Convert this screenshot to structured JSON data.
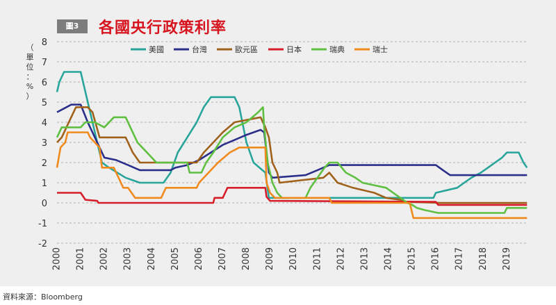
{
  "figure": {
    "badge": "圖3",
    "title": "各國央行政策利率",
    "source": "資料來源：Bloomberg"
  },
  "colors": {
    "title": "#d7141e",
    "panel": "#efefef",
    "badge": "#7d7d7d",
    "grid": "#9a9a9a"
  },
  "chart_data": {
    "type": "line",
    "title": "各國央行政策利率",
    "ylabel": "（單位：%）",
    "xlabel": "",
    "xlim": [
      2000,
      2019.9
    ],
    "ylim": [
      -2,
      8
    ],
    "yticks": [
      -2,
      -1,
      0,
      1,
      2,
      3,
      4,
      5,
      6,
      7,
      8
    ],
    "xticks": [
      "2000",
      "2001",
      "2002",
      "2003",
      "2004",
      "2005",
      "2006",
      "2007",
      "2008",
      "2009",
      "2010",
      "2011",
      "2012",
      "2013",
      "2014",
      "2015",
      "2016",
      "2017",
      "2018",
      "2019"
    ],
    "grid": "horizontal dashed",
    "legend": "top",
    "series": [
      {
        "name": "美國",
        "color": "#27a59b",
        "points": [
          [
            2000,
            5.5
          ],
          [
            2000.1,
            6.0
          ],
          [
            2000.3,
            6.5
          ],
          [
            2000.5,
            6.5
          ],
          [
            2001.0,
            6.5
          ],
          [
            2001.2,
            5.5
          ],
          [
            2001.5,
            4.0
          ],
          [
            2001.9,
            2.0
          ],
          [
            2002.2,
            1.75
          ],
          [
            2002.9,
            1.25
          ],
          [
            2003.5,
            1.0
          ],
          [
            2004.5,
            1.0
          ],
          [
            2004.8,
            1.5
          ],
          [
            2005.1,
            2.5
          ],
          [
            2005.5,
            3.25
          ],
          [
            2005.9,
            4.0
          ],
          [
            2006.2,
            4.75
          ],
          [
            2006.5,
            5.25
          ],
          [
            2007.5,
            5.25
          ],
          [
            2007.7,
            4.75
          ],
          [
            2008.0,
            3.0
          ],
          [
            2008.3,
            2.0
          ],
          [
            2008.8,
            1.5
          ],
          [
            2008.95,
            0.25
          ],
          [
            2015.9,
            0.25
          ],
          [
            2016.0,
            0.5
          ],
          [
            2016.9,
            0.75
          ],
          [
            2017.2,
            1.0
          ],
          [
            2017.5,
            1.25
          ],
          [
            2017.9,
            1.5
          ],
          [
            2018.2,
            1.75
          ],
          [
            2018.5,
            2.0
          ],
          [
            2018.8,
            2.25
          ],
          [
            2019.0,
            2.5
          ],
          [
            2019.5,
            2.5
          ],
          [
            2019.7,
            2.0
          ],
          [
            2019.85,
            1.75
          ]
        ]
      },
      {
        "name": "台灣",
        "color": "#2b2f8a",
        "points": [
          [
            2000,
            4.5
          ],
          [
            2000.4,
            4.75
          ],
          [
            2000.6,
            4.875
          ],
          [
            2001.0,
            4.875
          ],
          [
            2001.3,
            4.0
          ],
          [
            2001.6,
            3.25
          ],
          [
            2001.9,
            2.5
          ],
          [
            2002.0,
            2.25
          ],
          [
            2002.5,
            2.125
          ],
          [
            2003.0,
            1.875
          ],
          [
            2003.5,
            1.625
          ],
          [
            2004.0,
            1.625
          ],
          [
            2004.8,
            1.625
          ],
          [
            2005.0,
            1.75
          ],
          [
            2005.5,
            1.875
          ],
          [
            2006.0,
            2.125
          ],
          [
            2006.5,
            2.5
          ],
          [
            2007.0,
            2.875
          ],
          [
            2007.5,
            3.125
          ],
          [
            2008.0,
            3.375
          ],
          [
            2008.6,
            3.625
          ],
          [
            2008.75,
            3.5
          ],
          [
            2008.95,
            1.5
          ],
          [
            2009.1,
            1.25
          ],
          [
            2010.5,
            1.375
          ],
          [
            2011.0,
            1.625
          ],
          [
            2011.5,
            1.875
          ],
          [
            2016.0,
            1.875
          ],
          [
            2016.3,
            1.625
          ],
          [
            2016.6,
            1.375
          ],
          [
            2019.85,
            1.375
          ]
        ]
      },
      {
        "name": "歐元區",
        "color": "#a0621a",
        "points": [
          [
            2000,
            3.0
          ],
          [
            2000.2,
            3.25
          ],
          [
            2000.4,
            3.75
          ],
          [
            2000.6,
            4.25
          ],
          [
            2000.8,
            4.75
          ],
          [
            2001.3,
            4.75
          ],
          [
            2001.5,
            4.5
          ],
          [
            2001.8,
            3.25
          ],
          [
            2002.0,
            3.25
          ],
          [
            2002.9,
            3.25
          ],
          [
            2003.2,
            2.5
          ],
          [
            2003.5,
            2.0
          ],
          [
            2005.9,
            2.0
          ],
          [
            2006.2,
            2.5
          ],
          [
            2006.6,
            3.0
          ],
          [
            2007.0,
            3.5
          ],
          [
            2007.5,
            4.0
          ],
          [
            2008.6,
            4.25
          ],
          [
            2008.8,
            3.75
          ],
          [
            2008.95,
            3.25
          ],
          [
            2009.1,
            2.0
          ],
          [
            2009.3,
            1.5
          ],
          [
            2009.4,
            1.0
          ],
          [
            2011.25,
            1.25
          ],
          [
            2011.5,
            1.5
          ],
          [
            2011.85,
            1.0
          ],
          [
            2012.5,
            0.75
          ],
          [
            2013.4,
            0.5
          ],
          [
            2013.9,
            0.25
          ],
          [
            2014.5,
            0.15
          ],
          [
            2014.7,
            0.05
          ],
          [
            2016.2,
            0.0
          ],
          [
            2019.85,
            0.0
          ]
        ]
      },
      {
        "name": "日本",
        "color": "#d61e2a",
        "points": [
          [
            2000,
            0.5
          ],
          [
            2001.0,
            0.5
          ],
          [
            2001.2,
            0.15
          ],
          [
            2001.7,
            0.1
          ],
          [
            2001.75,
            0.0
          ],
          [
            2006.6,
            0.0
          ],
          [
            2006.65,
            0.25
          ],
          [
            2007.0,
            0.25
          ],
          [
            2007.1,
            0.5
          ],
          [
            2007.2,
            0.75
          ],
          [
            2008.8,
            0.75
          ],
          [
            2008.85,
            0.3
          ],
          [
            2009.0,
            0.1
          ],
          [
            2016.0,
            0.05
          ],
          [
            2016.1,
            -0.1
          ],
          [
            2019.85,
            -0.1
          ]
        ]
      },
      {
        "name": "瑞典",
        "color": "#5fbf40",
        "points": [
          [
            2000,
            3.25
          ],
          [
            2000.2,
            3.75
          ],
          [
            2001.0,
            3.75
          ],
          [
            2001.2,
            4.0
          ],
          [
            2001.6,
            4.0
          ],
          [
            2002.0,
            3.75
          ],
          [
            2002.4,
            4.25
          ],
          [
            2002.9,
            4.25
          ],
          [
            2003.1,
            3.75
          ],
          [
            2003.4,
            3.0
          ],
          [
            2003.6,
            2.75
          ],
          [
            2004.2,
            2.0
          ],
          [
            2005.5,
            2.0
          ],
          [
            2005.6,
            1.5
          ],
          [
            2006.1,
            1.5
          ],
          [
            2006.3,
            2.0
          ],
          [
            2006.6,
            2.5
          ],
          [
            2007.0,
            3.25
          ],
          [
            2007.5,
            3.75
          ],
          [
            2008.0,
            4.0
          ],
          [
            2008.5,
            4.5
          ],
          [
            2008.7,
            4.75
          ],
          [
            2008.75,
            3.75
          ],
          [
            2008.9,
            2.0
          ],
          [
            2009.1,
            1.0
          ],
          [
            2009.3,
            0.5
          ],
          [
            2009.5,
            0.25
          ],
          [
            2010.5,
            0.25
          ],
          [
            2010.7,
            0.75
          ],
          [
            2011.0,
            1.25
          ],
          [
            2011.3,
            1.75
          ],
          [
            2011.5,
            2.0
          ],
          [
            2011.85,
            2.0
          ],
          [
            2012.2,
            1.5
          ],
          [
            2012.6,
            1.25
          ],
          [
            2012.9,
            1.0
          ],
          [
            2013.9,
            0.75
          ],
          [
            2014.5,
            0.25
          ],
          [
            2014.8,
            0.0
          ],
          [
            2015.0,
            -0.1
          ],
          [
            2015.2,
            -0.25
          ],
          [
            2015.5,
            -0.35
          ],
          [
            2016.1,
            -0.5
          ],
          [
            2018.9,
            -0.5
          ],
          [
            2019.0,
            -0.25
          ],
          [
            2019.85,
            -0.25
          ]
        ]
      },
      {
        "name": "瑞士",
        "color": "#f08a1c",
        "points": [
          [
            2000,
            1.75
          ],
          [
            2000.15,
            2.75
          ],
          [
            2000.35,
            3.0
          ],
          [
            2000.45,
            3.5
          ],
          [
            2001.3,
            3.5
          ],
          [
            2001.4,
            3.25
          ],
          [
            2001.8,
            2.75
          ],
          [
            2001.9,
            1.75
          ],
          [
            2002.4,
            1.75
          ],
          [
            2002.6,
            1.25
          ],
          [
            2002.8,
            0.75
          ],
          [
            2003.0,
            0.75
          ],
          [
            2003.3,
            0.25
          ],
          [
            2004.4,
            0.25
          ],
          [
            2004.6,
            0.75
          ],
          [
            2005.9,
            0.75
          ],
          [
            2006.0,
            1.0
          ],
          [
            2006.4,
            1.5
          ],
          [
            2006.8,
            2.0
          ],
          [
            2007.3,
            2.5
          ],
          [
            2007.7,
            2.75
          ],
          [
            2008.8,
            2.75
          ],
          [
            2008.85,
            1.0
          ],
          [
            2009.0,
            0.5
          ],
          [
            2009.2,
            0.25
          ],
          [
            2011.5,
            0.25
          ],
          [
            2011.6,
            0.0
          ],
          [
            2014.9,
            0.0
          ],
          [
            2015.05,
            -0.75
          ],
          [
            2019.85,
            -0.75
          ]
        ]
      }
    ]
  }
}
